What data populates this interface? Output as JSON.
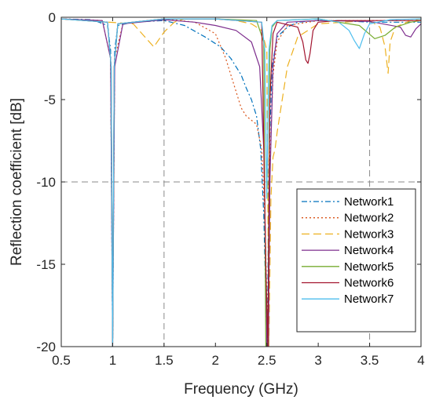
{
  "chart_data": {
    "type": "line",
    "title": "",
    "xlabel": "Frequency (GHz)",
    "ylabel": "Reflection coefficient [dB]",
    "xlim": [
      0.5,
      4
    ],
    "ylim": [
      -20,
      0
    ],
    "xticks": [
      "0.5",
      "1",
      "1.5",
      "2",
      "2.5",
      "3",
      "3.5",
      "4"
    ],
    "yticks": [
      "-20",
      "-15",
      "-10",
      "-5",
      "0"
    ],
    "grid": "dashed reference lines at x=1.5, x=3.5 and y=-10",
    "legend_position": "lower-right",
    "series": [
      {
        "name": "Network1",
        "color": "#0072BD",
        "dash": "7,3,2,3",
        "x": [
          0.5,
          0.8,
          0.95,
          0.98,
          1.0,
          1.02,
          1.05,
          1.2,
          1.5,
          1.7,
          1.9,
          2.05,
          2.15,
          2.25,
          2.3,
          2.35,
          2.4,
          2.44,
          2.47,
          2.49,
          2.505,
          2.52,
          2.55,
          2.6,
          2.7,
          2.8,
          3.0,
          3.2,
          3.5,
          3.8,
          4.0
        ],
        "y": [
          -0.1,
          -0.15,
          -0.5,
          -2.0,
          -20,
          -2.0,
          -0.5,
          -0.3,
          -0.2,
          -0.5,
          -1.2,
          -1.8,
          -2.5,
          -3.5,
          -4.3,
          -5.0,
          -6.0,
          -8.0,
          -12.0,
          -17.0,
          -20,
          -9.0,
          -3.0,
          -1.2,
          -0.6,
          -0.3,
          -0.2,
          -0.2,
          -0.3,
          -0.3,
          -0.3
        ]
      },
      {
        "name": "Network2",
        "color": "#D95319",
        "dash": "2,3",
        "x": [
          0.5,
          0.9,
          0.98,
          1.0,
          1.02,
          1.1,
          1.5,
          1.8,
          2.0,
          2.1,
          2.15,
          2.2,
          2.25,
          2.3,
          2.4,
          2.45,
          2.48,
          2.5,
          2.515,
          2.53,
          2.56,
          2.6,
          2.7,
          3.0,
          3.5,
          4.0
        ],
        "y": [
          -0.1,
          -0.2,
          -2.5,
          -20,
          -2.5,
          -0.4,
          -0.1,
          -0.3,
          -1.0,
          -2.5,
          -3.5,
          -4.5,
          -5.5,
          -6.0,
          -6.5,
          -8.0,
          -12.0,
          -17.0,
          -20,
          -9.0,
          -3.5,
          -1.5,
          -0.5,
          -0.2,
          -0.2,
          -0.2
        ]
      },
      {
        "name": "Network3",
        "color": "#EDB120",
        "dash": "10,5",
        "x": [
          0.5,
          1.2,
          1.3,
          1.4,
          1.5,
          1.6,
          1.7,
          2.0,
          2.2,
          2.35,
          2.45,
          2.5,
          2.52,
          2.54,
          2.56,
          2.58,
          2.6,
          2.65,
          2.7,
          2.8,
          3.0,
          3.5,
          3.6,
          3.65,
          3.68,
          3.7,
          3.75,
          3.9,
          4.0
        ],
        "y": [
          -0.1,
          -0.4,
          -1.1,
          -1.8,
          -0.9,
          -0.3,
          -0.1,
          -0.1,
          -0.2,
          -0.4,
          -0.8,
          -2.0,
          -20,
          -11.0,
          -8.5,
          -8.0,
          -7.0,
          -5.0,
          -3.0,
          -1.2,
          -0.4,
          -0.2,
          -0.6,
          -1.8,
          -3.4,
          -1.5,
          -0.6,
          -0.2,
          -0.1
        ]
      },
      {
        "name": "Network4",
        "color": "#7E2F8E",
        "dash": "",
        "x": [
          0.5,
          0.9,
          0.98,
          1.0,
          1.02,
          1.1,
          1.5,
          1.8,
          2.0,
          2.2,
          2.35,
          2.43,
          2.47,
          2.49,
          2.5,
          2.515,
          2.53,
          2.56,
          2.6,
          2.7,
          3.0,
          3.5,
          3.8,
          3.85,
          3.9,
          3.95,
          4.0
        ],
        "y": [
          -0.1,
          -0.2,
          -2.5,
          -20,
          -3.0,
          -0.4,
          -0.15,
          -0.3,
          -0.5,
          -0.8,
          -1.5,
          -3.0,
          -8.0,
          -15.0,
          -20,
          -20,
          -10.0,
          -3.0,
          -1.0,
          -0.3,
          -0.2,
          -0.25,
          -0.6,
          -1.1,
          -1.2,
          -0.7,
          -0.4
        ]
      },
      {
        "name": "Network5",
        "color": "#77AC30",
        "dash": "",
        "x": [
          0.5,
          0.95,
          0.985,
          1.0,
          1.015,
          1.05,
          1.5,
          2.0,
          2.4,
          2.47,
          2.49,
          2.51,
          2.53,
          2.55,
          2.6,
          3.0,
          3.4,
          3.55,
          3.65,
          3.75,
          3.9,
          4.0
        ],
        "y": [
          -0.1,
          -0.3,
          -3.0,
          -20,
          -3.0,
          -0.4,
          -0.1,
          -0.1,
          -0.2,
          -1.5,
          -20,
          -20,
          -2.0,
          -0.6,
          -0.2,
          -0.1,
          -0.5,
          -1.3,
          -1.1,
          -0.6,
          -0.3,
          -0.2
        ]
      },
      {
        "name": "Network6",
        "color": "#A2142F",
        "dash": "",
        "x": [
          0.5,
          0.95,
          0.985,
          1.0,
          1.015,
          1.05,
          1.5,
          2.0,
          2.45,
          2.49,
          2.51,
          2.53,
          2.56,
          2.6,
          2.8,
          2.85,
          2.88,
          2.9,
          2.92,
          2.95,
          3.0,
          3.2,
          3.5,
          4.0
        ],
        "y": [
          -0.1,
          -0.3,
          -3.0,
          -20,
          -3.0,
          -0.4,
          -0.1,
          -0.1,
          -0.3,
          -15.0,
          -20,
          -5.0,
          -1.0,
          -0.3,
          -0.6,
          -1.5,
          -2.6,
          -2.8,
          -2.2,
          -0.8,
          -0.3,
          -0.2,
          -0.2,
          -0.2
        ]
      },
      {
        "name": "Network7",
        "color": "#4DBEEE",
        "dash": "",
        "x": [
          0.5,
          0.95,
          0.985,
          1.0,
          1.015,
          1.05,
          1.5,
          2.0,
          2.45,
          2.48,
          2.5,
          2.52,
          2.55,
          2.6,
          3.0,
          3.2,
          3.3,
          3.35,
          3.4,
          3.45,
          3.5,
          3.7,
          4.0
        ],
        "y": [
          -0.1,
          -0.3,
          -3.0,
          -20,
          -3.0,
          -0.4,
          -0.1,
          -0.1,
          -0.3,
          -2.0,
          -11.0,
          -2.0,
          -0.5,
          -0.2,
          -0.1,
          -0.3,
          -0.8,
          -1.4,
          -1.9,
          -1.0,
          -0.4,
          -0.15,
          -0.1
        ]
      }
    ]
  }
}
